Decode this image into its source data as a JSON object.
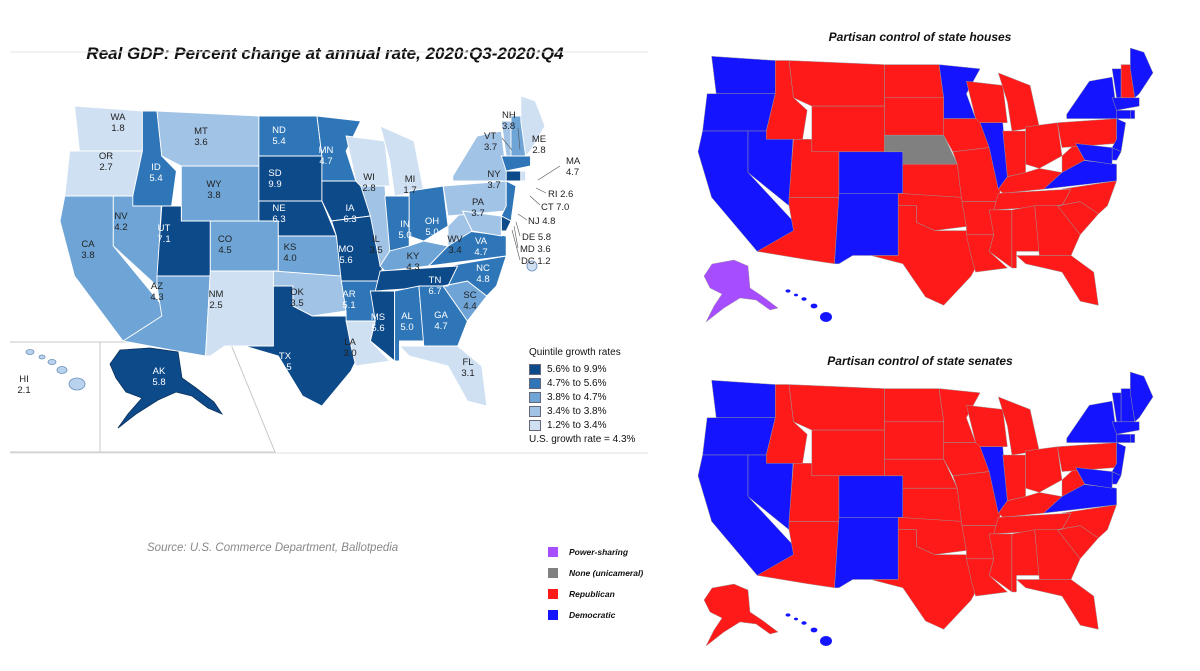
{
  "gdp_map": {
    "title": "Real GDP: Percent change at annual rate, 2020:Q3-2020:Q4",
    "colors": {
      "q1": "#0d4a8a",
      "q2": "#2e76b8",
      "q3": "#6ea4d6",
      "q4": "#a1c3e6",
      "q5": "#cfe0f2",
      "border": "#ffffff"
    },
    "states": [
      {
        "abbr": "WA",
        "value": "1.8"
      },
      {
        "abbr": "OR",
        "value": "2.7"
      },
      {
        "abbr": "CA",
        "value": "3.8"
      },
      {
        "abbr": "NV",
        "value": "4.2"
      },
      {
        "abbr": "ID",
        "value": "5.4"
      },
      {
        "abbr": "MT",
        "value": "3.6"
      },
      {
        "abbr": "WY",
        "value": "3.8"
      },
      {
        "abbr": "UT",
        "value": "7.1"
      },
      {
        "abbr": "AZ",
        "value": "4.3"
      },
      {
        "abbr": "CO",
        "value": "4.5"
      },
      {
        "abbr": "NM",
        "value": "2.5"
      },
      {
        "abbr": "ND",
        "value": "5.4"
      },
      {
        "abbr": "SD",
        "value": "9.9"
      },
      {
        "abbr": "NE",
        "value": "6.3"
      },
      {
        "abbr": "KS",
        "value": "4.0"
      },
      {
        "abbr": "OK",
        "value": "3.5"
      },
      {
        "abbr": "TX",
        "value": "7.5"
      },
      {
        "abbr": "MN",
        "value": "4.7"
      },
      {
        "abbr": "IA",
        "value": "6.3"
      },
      {
        "abbr": "MO",
        "value": "5.6"
      },
      {
        "abbr": "AR",
        "value": "5.1"
      },
      {
        "abbr": "LA",
        "value": "3.0"
      },
      {
        "abbr": "WI",
        "value": "2.8"
      },
      {
        "abbr": "IL",
        "value": "3.5"
      },
      {
        "abbr": "MI",
        "value": "1.7"
      },
      {
        "abbr": "IN",
        "value": "5.0"
      },
      {
        "abbr": "OH",
        "value": "5.0"
      },
      {
        "abbr": "KY",
        "value": "4.3"
      },
      {
        "abbr": "TN",
        "value": "6.7"
      },
      {
        "abbr": "MS",
        "value": "5.6"
      },
      {
        "abbr": "AL",
        "value": "5.0"
      },
      {
        "abbr": "GA",
        "value": "4.7"
      },
      {
        "abbr": "FL",
        "value": "3.1"
      },
      {
        "abbr": "SC",
        "value": "4.4"
      },
      {
        "abbr": "NC",
        "value": "4.8"
      },
      {
        "abbr": "VA",
        "value": "4.7"
      },
      {
        "abbr": "WV",
        "value": "3.4"
      },
      {
        "abbr": "PA",
        "value": "3.7"
      },
      {
        "abbr": "NY",
        "value": "3.7"
      },
      {
        "abbr": "VT",
        "value": "3.7"
      },
      {
        "abbr": "NH",
        "value": "3.8"
      },
      {
        "abbr": "ME",
        "value": "2.8"
      },
      {
        "abbr": "MA",
        "value": "4.7"
      },
      {
        "abbr": "RI",
        "value": "2.6"
      },
      {
        "abbr": "CT",
        "value": "7.0"
      },
      {
        "abbr": "NJ",
        "value": "4.8"
      },
      {
        "abbr": "DE",
        "value": "5.8"
      },
      {
        "abbr": "MD",
        "value": "3.6"
      },
      {
        "abbr": "DC",
        "value": "1.2"
      },
      {
        "abbr": "AK",
        "value": "5.8"
      },
      {
        "abbr": "HI",
        "value": "2.1"
      }
    ],
    "legend": {
      "title": "Quintile growth rates",
      "items": [
        "5.6% to 9.9%",
        "4.7% to 5.6%",
        "3.8% to 4.7%",
        "3.4% to 3.8%",
        "1.2% to 3.4%"
      ],
      "us_rate": "U.S. growth rate = 4.3%"
    }
  },
  "source": "Source: U.S. Commerce Department, Ballotpedia",
  "partisan": {
    "colors": {
      "republican": "#ff1a1a",
      "democratic": "#1414ff",
      "power_sharing": "#a64dff",
      "none": "#808080"
    },
    "houses_title": "Partisan control of state houses",
    "senates_title": "Partisan control of state senates",
    "legend": [
      {
        "label": "Power-sharing",
        "color": "#a64dff"
      },
      {
        "label": "None (unicameral)",
        "color": "#808080"
      },
      {
        "label": "Republican",
        "color": "#ff1a1a"
      },
      {
        "label": "Democratic",
        "color": "#1414ff"
      }
    ]
  }
}
